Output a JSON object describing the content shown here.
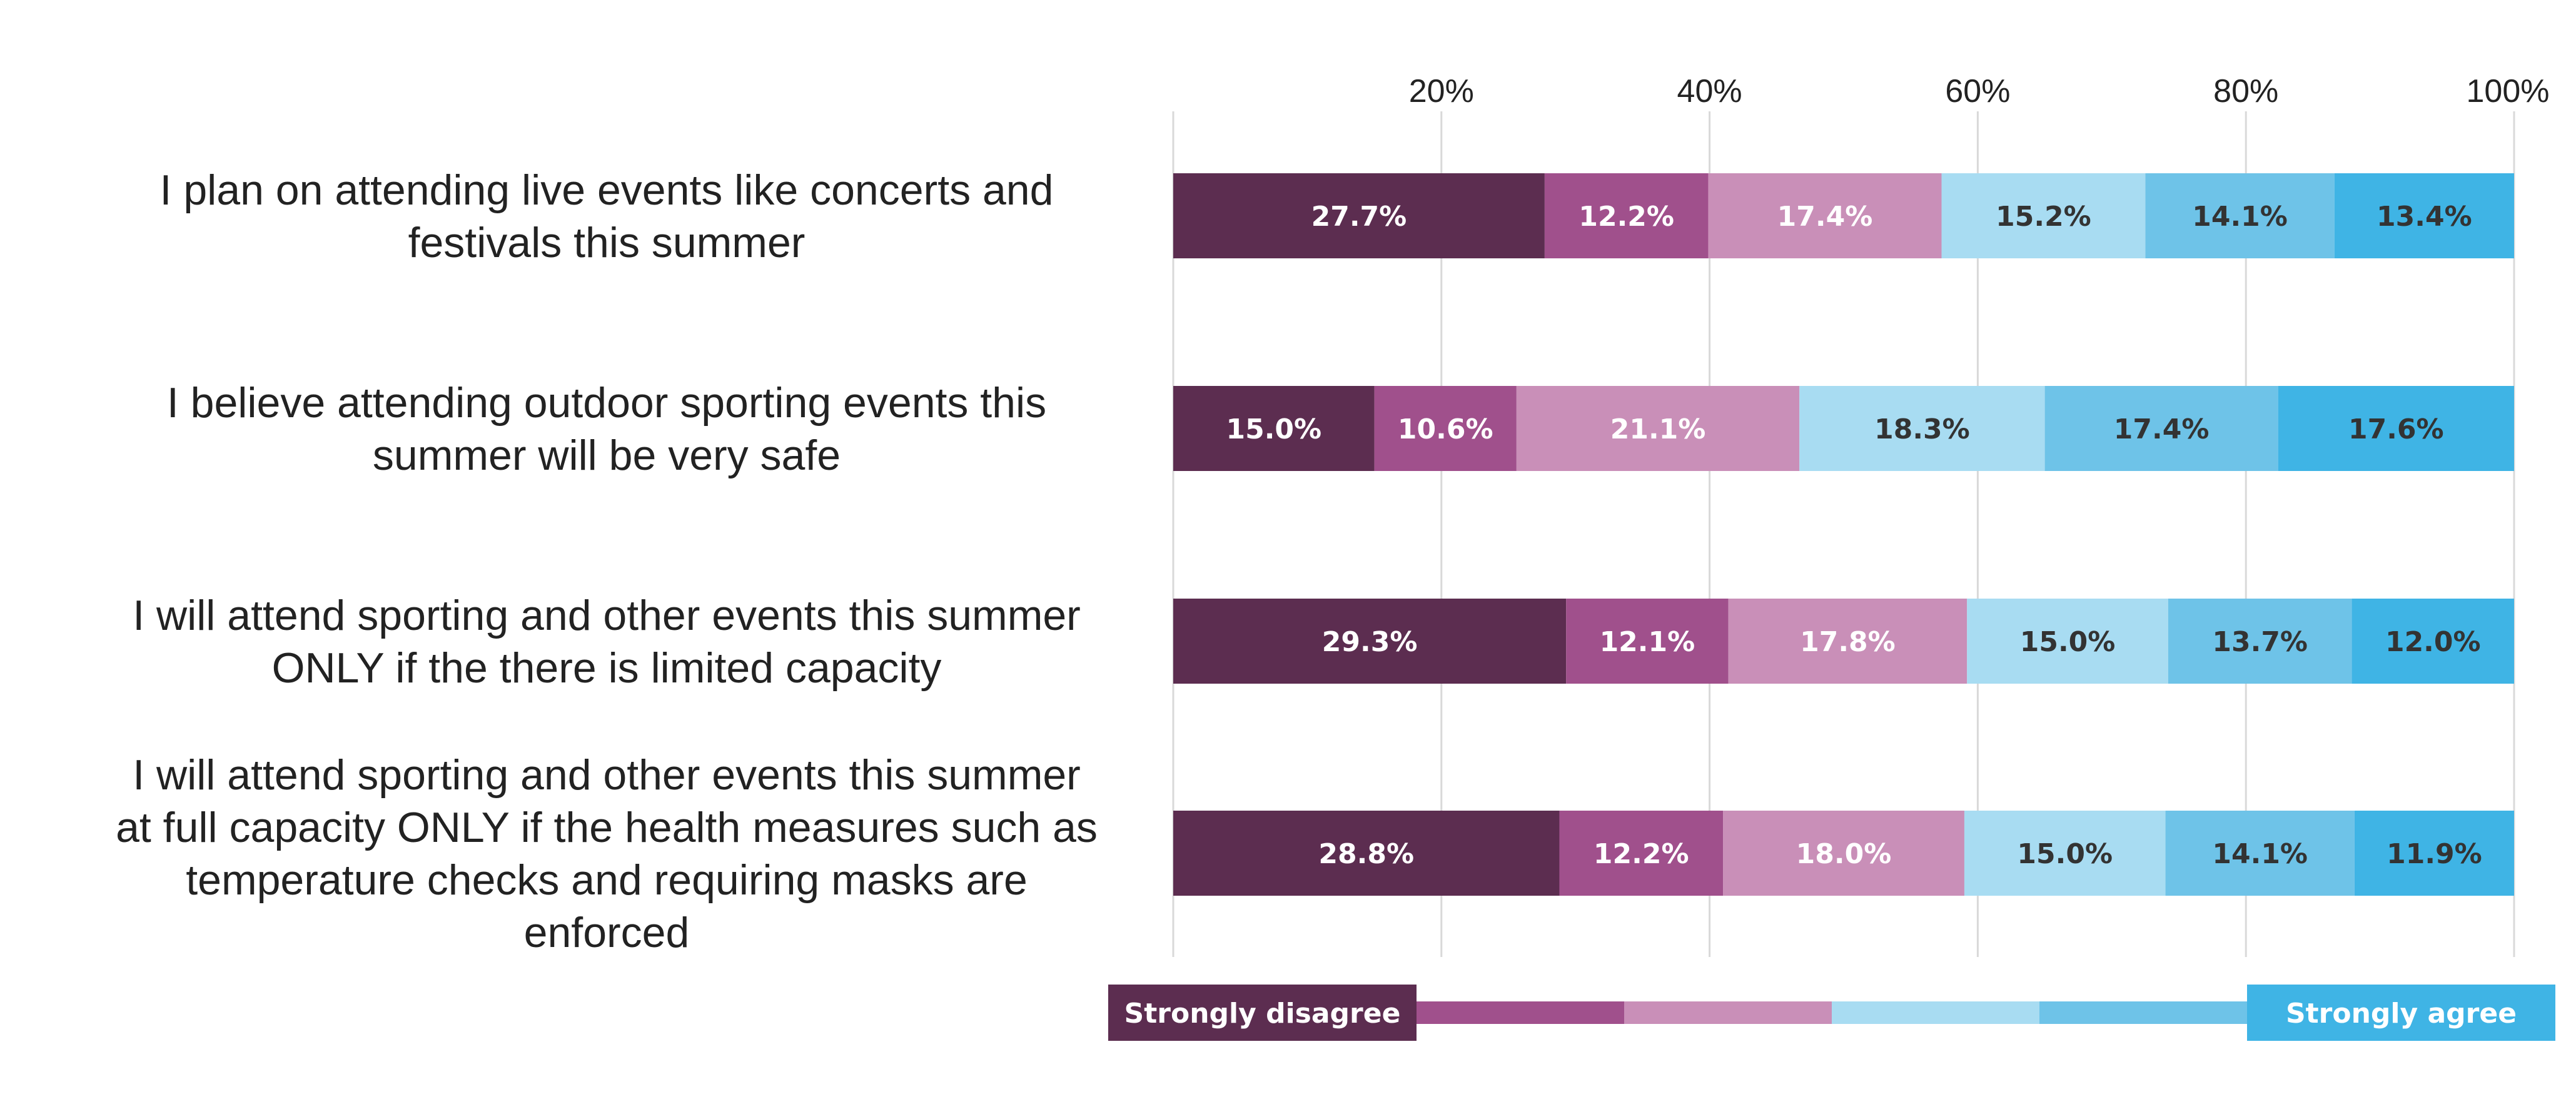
{
  "chart_data": {
    "type": "bar",
    "orientation": "horizontal",
    "stacked": "100%",
    "categories": [
      "I plan on attending live events like concerts and festivals this summer",
      "I believe attending outdoor sporting events this summer will be very safe",
      "I will attend sporting and other events this summer ONLY if the there is limited capacity",
      "I will attend sporting and other events this summer at full capacity ONLY if the health measures such as temperature checks and requiring masks are enforced"
    ],
    "category_lines": [
      [
        "I plan on attending live events like concerts and",
        "festivals this summer"
      ],
      [
        "I believe attending outdoor sporting events this",
        "summer will be very safe"
      ],
      [
        "I will attend sporting and other events this summer",
        "ONLY if the there is limited capacity"
      ],
      [
        "I will attend sporting and other events this summer",
        "at full capacity ONLY if the health measures such as",
        "temperature checks and requiring masks are",
        "enforced"
      ]
    ],
    "series": [
      {
        "values": [
          27.7,
          15.0,
          29.3,
          28.8
        ],
        "color": "#5c2d50",
        "label_color": "#ffffff"
      },
      {
        "values": [
          12.2,
          10.6,
          12.1,
          12.2
        ],
        "color": "#a0508c",
        "label_color": "#ffffff"
      },
      {
        "values": [
          17.4,
          21.1,
          17.8,
          18.0
        ],
        "color": "#c98fb8",
        "label_color": "#ffffff"
      },
      {
        "values": [
          15.2,
          18.3,
          15.0,
          15.0
        ],
        "color": "#a8dcf2",
        "label_color": "#333333"
      },
      {
        "values": [
          14.1,
          17.4,
          13.7,
          14.1
        ],
        "color": "#6ec3e8",
        "label_color": "#333333"
      },
      {
        "values": [
          13.4,
          17.6,
          12.0,
          11.9
        ],
        "color": "#3fb4e5",
        "label_color": "#333333"
      }
    ],
    "data_labels": [
      [
        "27.7%",
        "12.2%",
        "17.4%",
        "15.2%",
        "14.1%",
        "13.4%"
      ],
      [
        "15.0%",
        "10.6%",
        "21.1%",
        "18.3%",
        "17.4%",
        "17.6%"
      ],
      [
        "29.3%",
        "12.1%",
        "17.8%",
        "15.0%",
        "13.7%",
        "12.0%"
      ],
      [
        "28.8%",
        "12.2%",
        "18.0%",
        "15.0%",
        "14.1%",
        "11.9%"
      ]
    ],
    "xlim": [
      0,
      100
    ],
    "ticks": [
      20,
      40,
      60,
      80,
      100
    ],
    "tick_labels": [
      "20%",
      "40%",
      "60%",
      "80%",
      "100%"
    ],
    "grid": true,
    "legend": {
      "placement": "bottom",
      "start_label": "Strongly disagree",
      "end_label": "Strongly agree"
    }
  }
}
